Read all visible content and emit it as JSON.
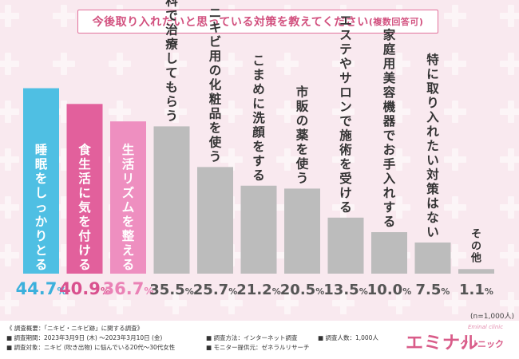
{
  "title": {
    "main": "今後取り入れたいと思っている対策を教えてください",
    "sub": "(複数回答可)"
  },
  "chart_data": {
    "type": "bar",
    "title": "今後取り入れたいと思っている対策を教えてください(複数回答可)",
    "categories": [
      "睡眠をしっかりとる",
      "食生活に気を付ける",
      "生活リズムを整える",
      "皮膚科で治療してもらう",
      "ニキビ用の化粧品を使う",
      "こまめに洗顔をする",
      "市販の薬を使う",
      "エステやサロンで施術を受ける",
      "家庭用美容機器でお手入れする",
      "特に取り入れたい対策はない",
      "その他"
    ],
    "values": [
      44.7,
      40.9,
      36.7,
      35.5,
      25.7,
      21.2,
      20.5,
      13.5,
      10.0,
      7.5,
      1.1
    ],
    "value_labels": [
      "44.7%",
      "40.9%",
      "36.7%",
      "35.5%",
      "25.7%",
      "21.2%",
      "20.5%",
      "13.5%",
      "10.0%",
      "7.5%",
      "1.1%"
    ],
    "unit": "%",
    "ylim": [
      0,
      50
    ],
    "xlabel": "",
    "ylabel": ""
  },
  "colors": {
    "bar_blue": "#4fbfe3",
    "bar_pink": "#e2609c",
    "bar_light_pink": "#ee8fc0",
    "bar_gray": "#bcbcbc",
    "bar_text_gray": "#333333",
    "label_blue": "#3cb0dc",
    "label_pink": "#d9508e",
    "label_light_pink": "#ea82b6",
    "label_gray": "#555555"
  },
  "note": "(n=1,000人)",
  "footer": {
    "heading": "《 調査概要：「ニキビ・ニキビ跡」に関する調査》",
    "period": "■ 調査期間：2023年3月9日 (木) 〜2023年3月10日 (金)",
    "target": "■ 調査対象：ニキビ (吹き出物) に悩んでいる20代〜30代女性",
    "method": "■ 調査方法：インターネット調査",
    "monitor": "■ モニター提供元：ゼネラルリサーチ",
    "count": "■ 調査人数：1,000人",
    "logo_main": "エミナル",
    "logo_sub": "クリニック",
    "logo_script": "Eminal clinic"
  }
}
